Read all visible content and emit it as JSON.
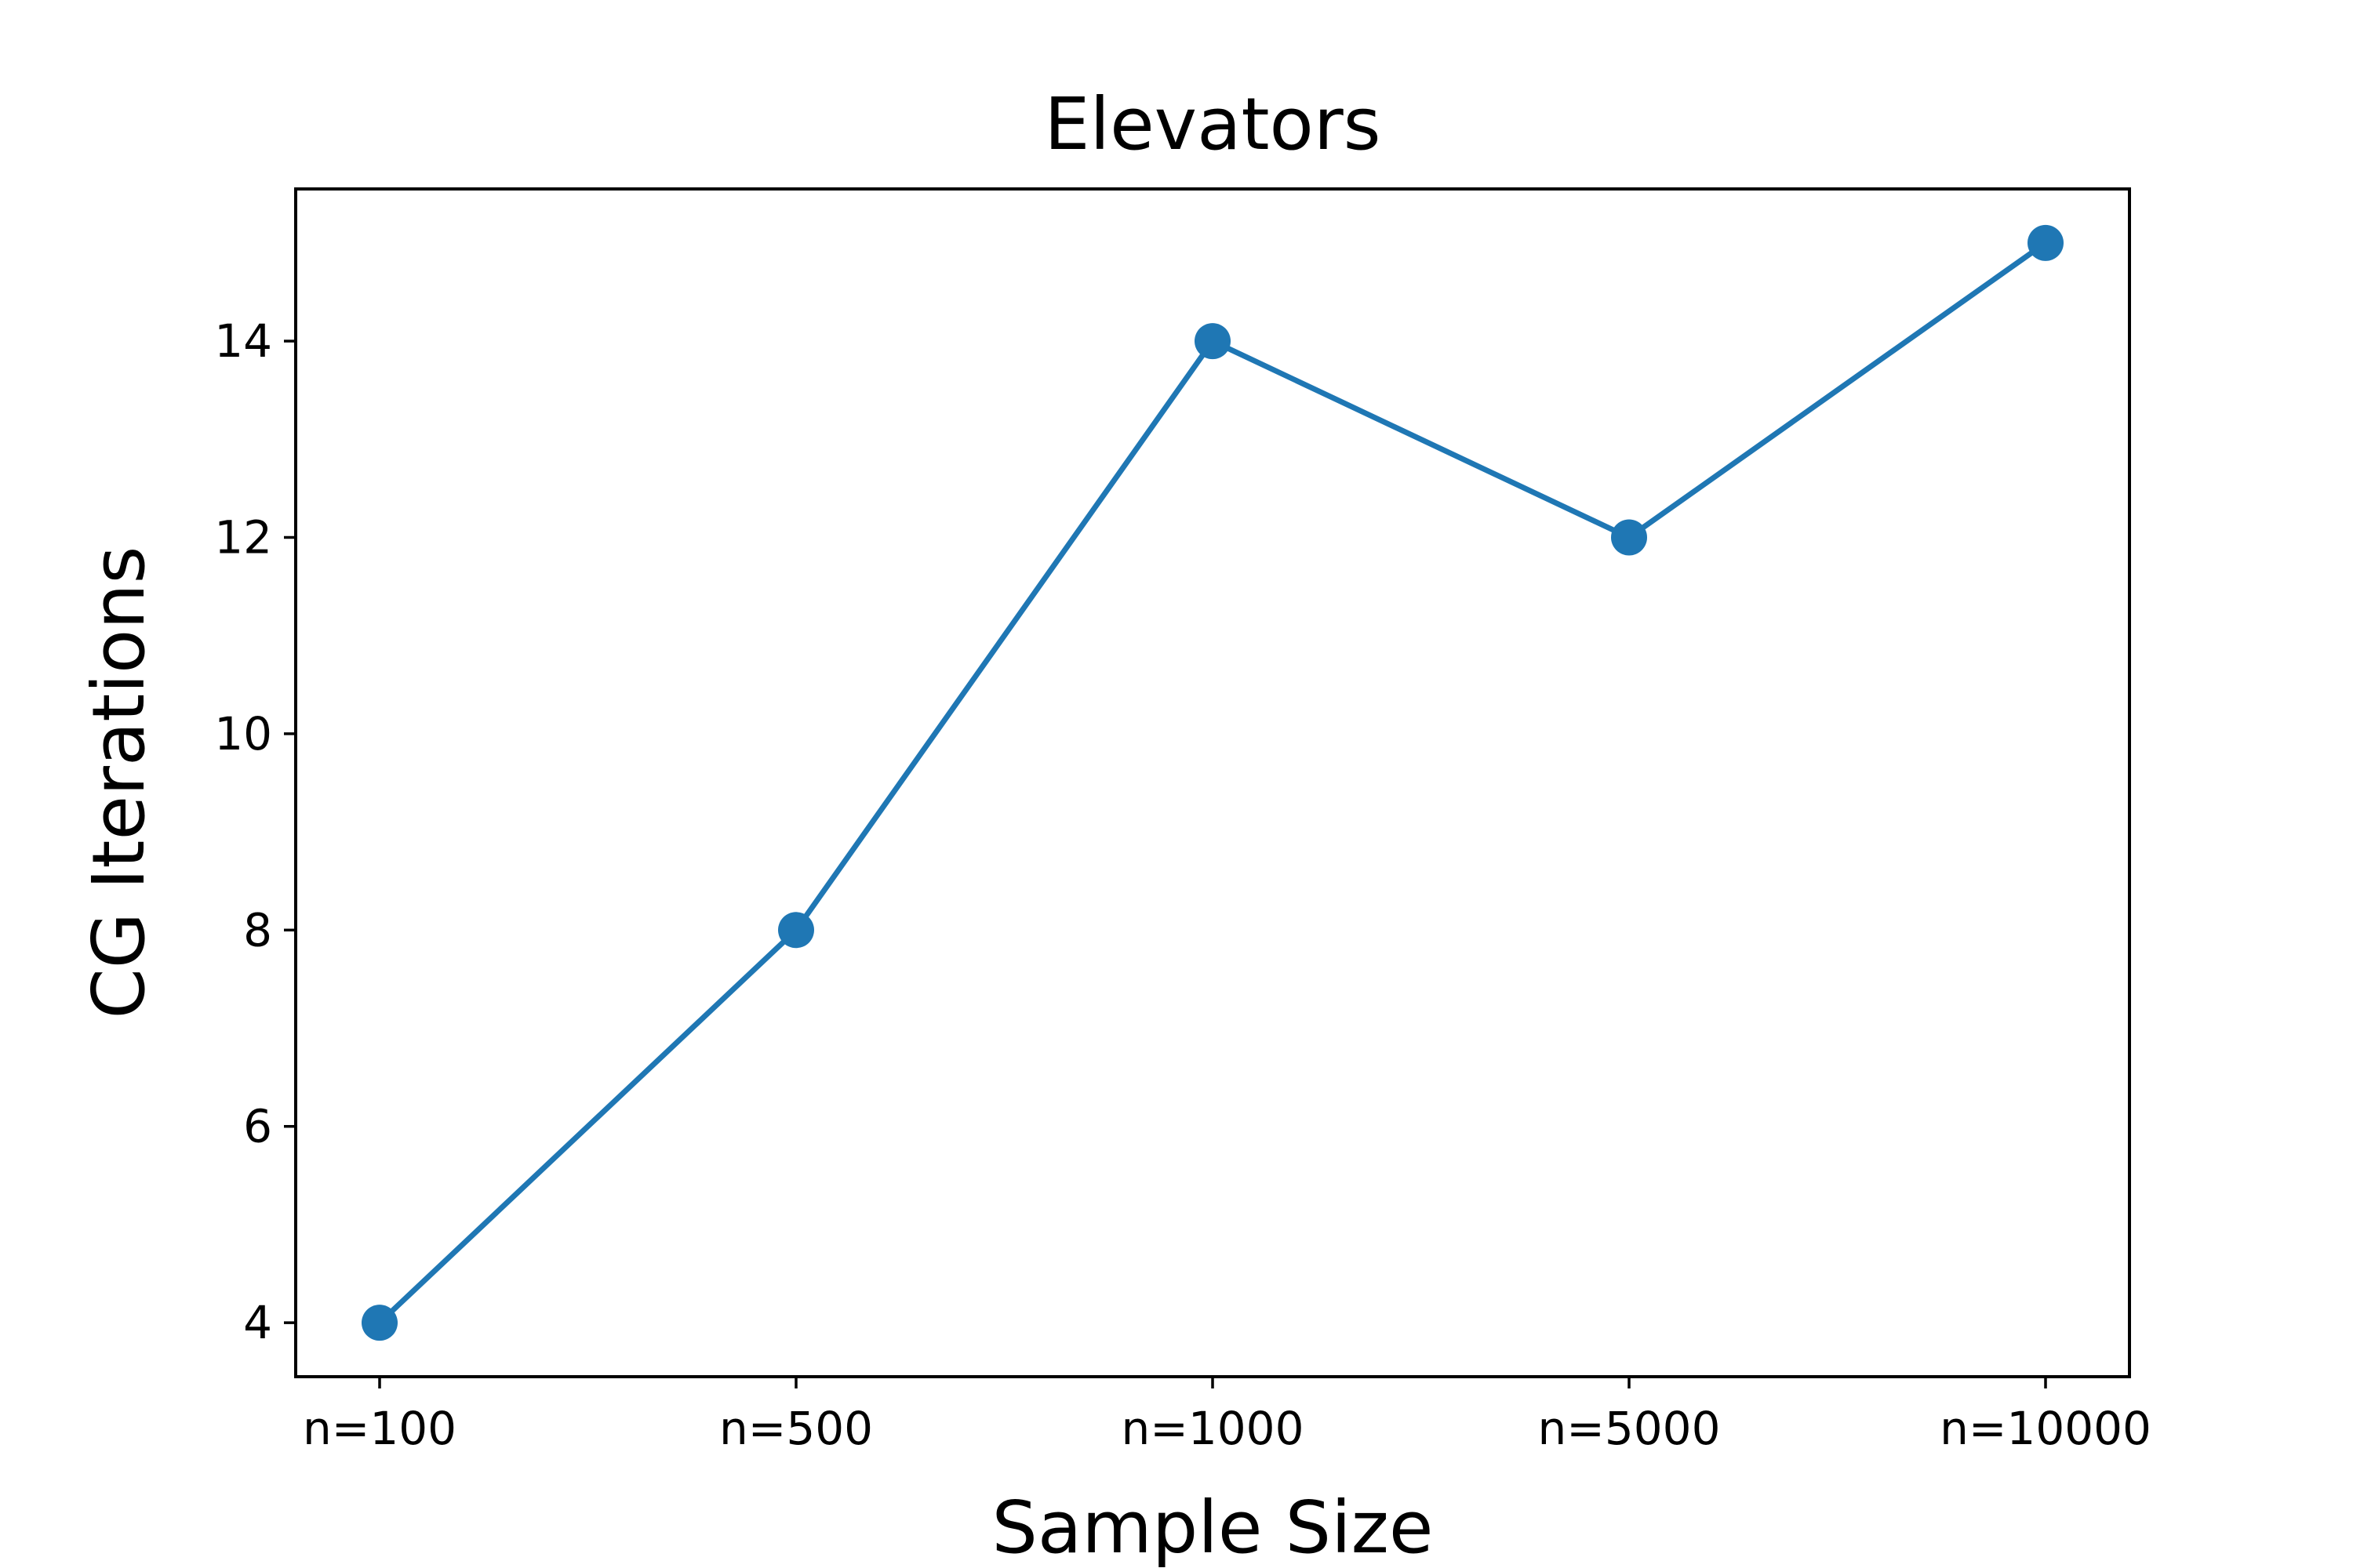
{
  "chart_data": {
    "type": "line",
    "title": "Elevators",
    "xlabel": "Sample Size",
    "ylabel": "CG Iterations",
    "categories": [
      "n=100",
      "n=500",
      "n=1000",
      "n=5000",
      "n=10000"
    ],
    "series": [
      {
        "values": [
          4,
          8,
          14,
          12,
          15
        ],
        "color": "#1f77b4"
      }
    ],
    "ylim": [
      3.45,
      15.55
    ],
    "yticks": [
      4,
      6,
      8,
      10,
      12,
      14
    ],
    "grid": false,
    "markers": "circle"
  }
}
